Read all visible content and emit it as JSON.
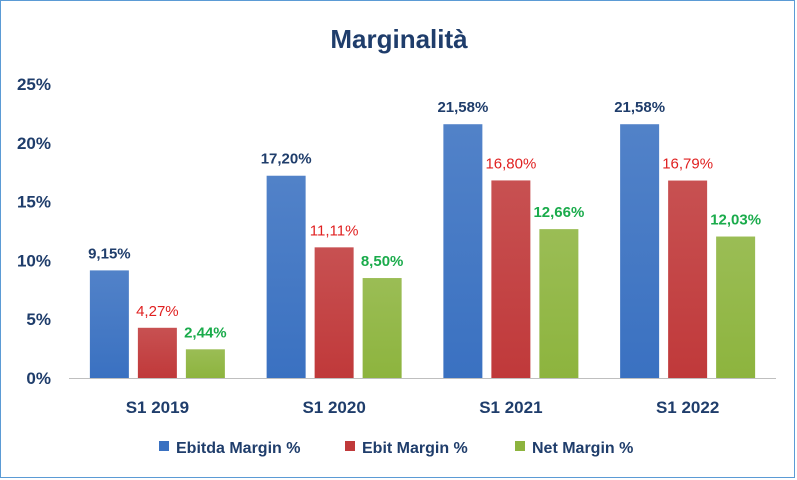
{
  "chart_data": {
    "type": "bar",
    "title": "Marginalità",
    "categories": [
      "S1 2019",
      "S1 2020",
      "S1 2021",
      "S1 2022"
    ],
    "series": [
      {
        "name": "Ebitda Margin %",
        "values": [
          9.15,
          17.2,
          21.58,
          21.58
        ],
        "labels": [
          "9,15%",
          "17,20%",
          "21,58%",
          "21,58%"
        ],
        "color": "#3a71c1",
        "label_color": "#1f3d6b"
      },
      {
        "name": "Ebit Margin %",
        "values": [
          4.27,
          11.11,
          16.8,
          16.79
        ],
        "labels": [
          "4,27%",
          "11,11%",
          "16,80%",
          "16,79%"
        ],
        "color": "#c0393a",
        "label_color": "#e02020"
      },
      {
        "name": "Net Margin %",
        "values": [
          2.44,
          8.5,
          12.66,
          12.03
        ],
        "labels": [
          "2,44%",
          "8,50%",
          "12,66%",
          "12,03%"
        ],
        "color": "#8db43e",
        "label_color": "#1aab4b"
      }
    ],
    "ylim": [
      0,
      25
    ],
    "yticks": [
      "0%",
      "5%",
      "10%",
      "15%",
      "20%",
      "25%"
    ],
    "xlabel": "",
    "ylabel": "",
    "grid": false,
    "legend_position": "bottom"
  }
}
